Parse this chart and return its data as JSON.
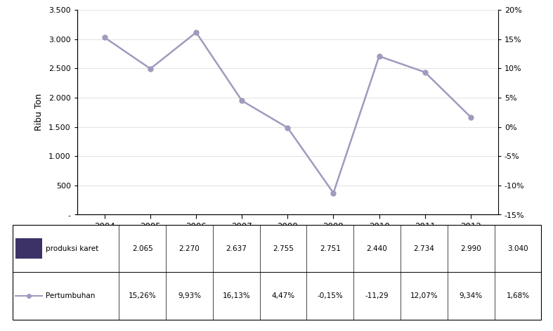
{
  "years": [
    "2004",
    "2005",
    "2006",
    "2007",
    "2008",
    "2009",
    "2010",
    "2011",
    "2012\n*"
  ],
  "production": [
    2.065,
    2.27,
    2.637,
    2.755,
    2.751,
    2.44,
    2.734,
    2.99,
    3.04
  ],
  "growth": [
    15.26,
    9.93,
    16.13,
    4.47,
    -0.15,
    -11.29,
    12.07,
    9.34,
    1.68
  ],
  "production_labels": [
    "2.065",
    "2.270",
    "2.637",
    "2.755",
    "2.751",
    "2.440",
    "2.734",
    "2.990",
    "3.040"
  ],
  "growth_labels": [
    "15,26%",
    "9,93%",
    "16,13%",
    "4,47%",
    "-0,15%",
    "-11,29",
    "12,07%",
    "9,34%",
    "1,68%"
  ],
  "bar_color": "#3d3268",
  "line_color": "#a09abe",
  "background_color": "#ffffff",
  "ylabel_left": "Ribu Ton",
  "ylim_left": [
    0,
    3500
  ],
  "ylim_right": [
    -15,
    20
  ],
  "yticks_left": [
    0,
    500,
    1000,
    1500,
    2000,
    2500,
    3000,
    3500
  ],
  "ytick_labels_left": [
    "-",
    "500",
    "1.000",
    "1.500",
    "2.000",
    "2.500",
    "3.000",
    "3.500"
  ],
  "yticks_right": [
    -15,
    -10,
    -5,
    0,
    5,
    10,
    15,
    20
  ],
  "ytick_labels_right": [
    "-15%",
    "-10%",
    "-5%",
    "0%",
    "5%",
    "10%",
    "15%",
    "20%"
  ],
  "legend_bar_label": "produksi karet",
  "legend_line_label": "Pertumbuhan"
}
